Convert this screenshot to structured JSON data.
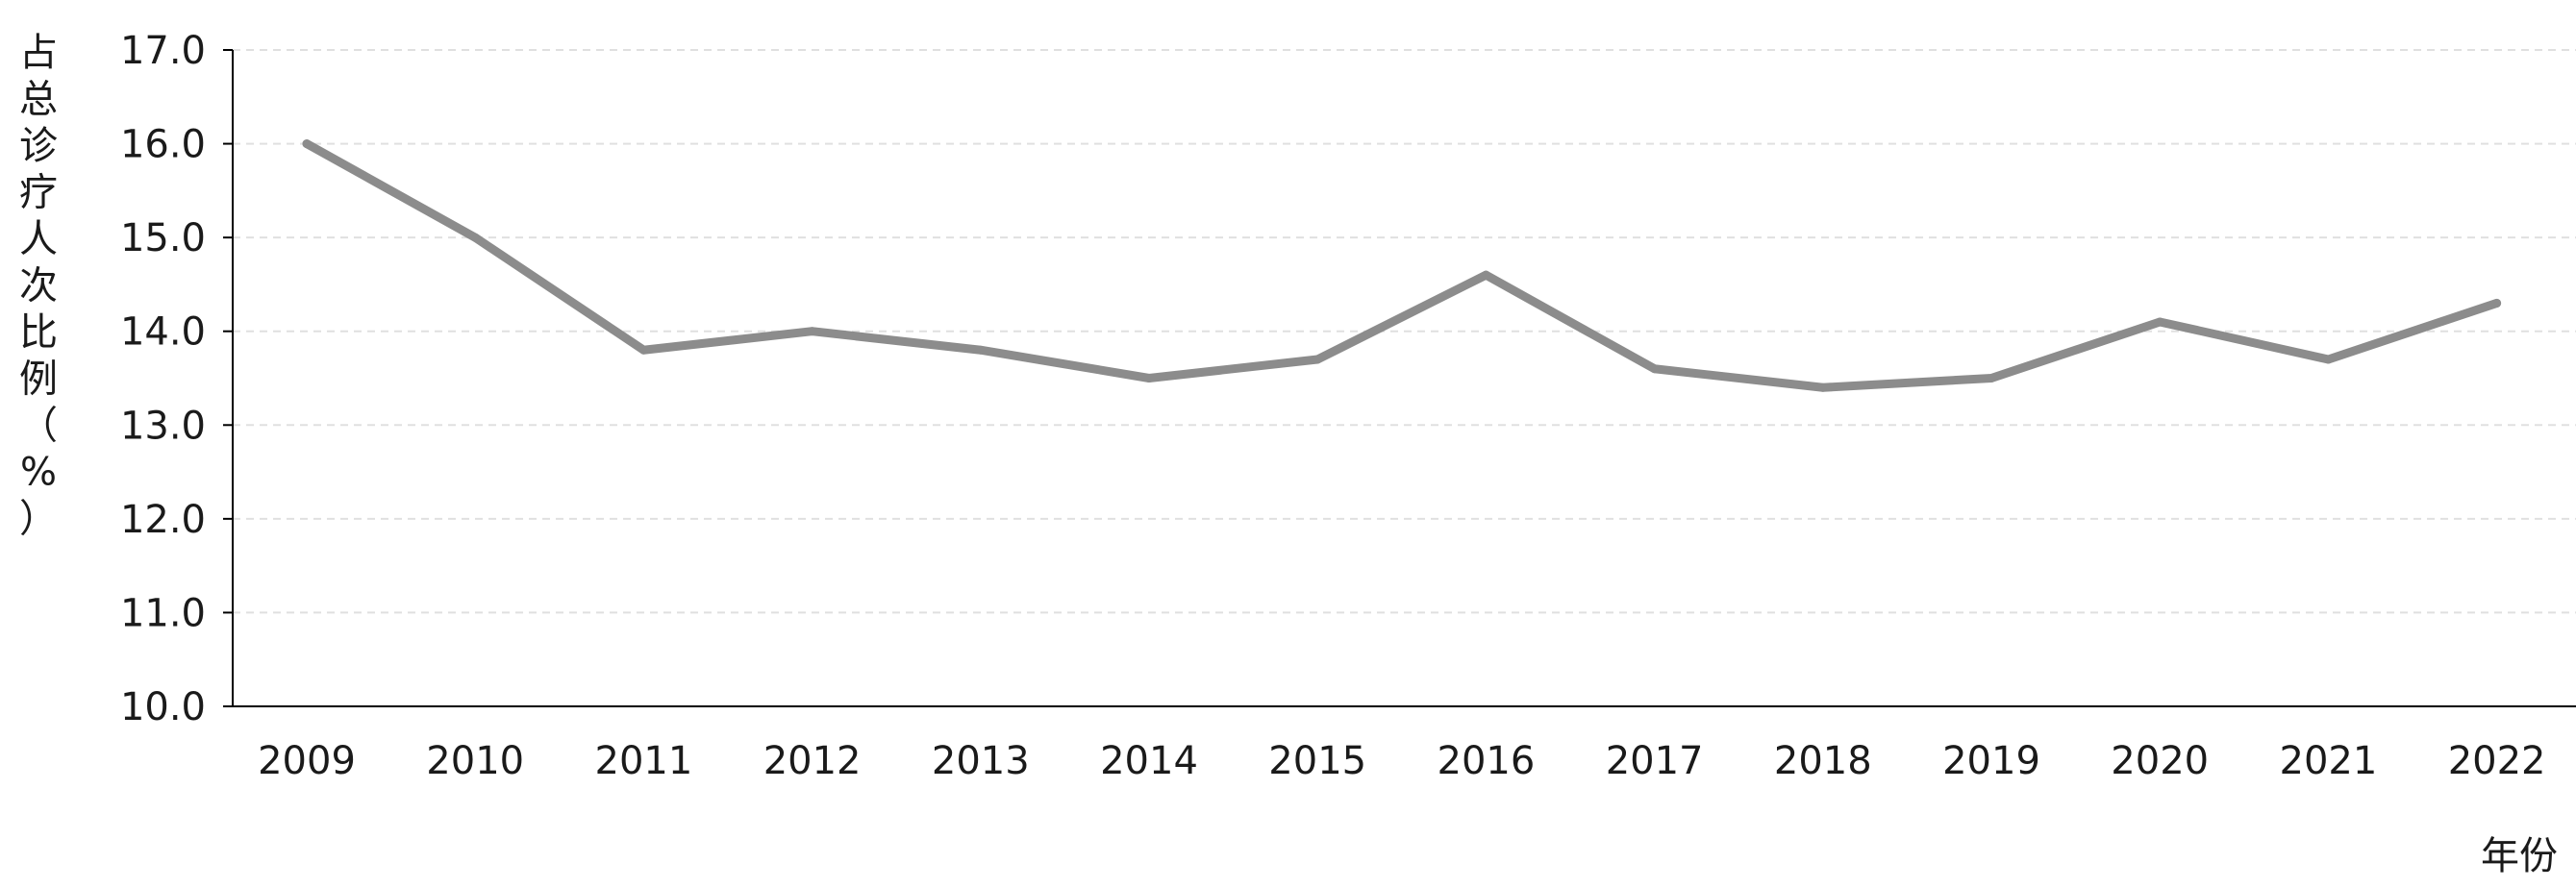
{
  "chart_data": {
    "type": "line",
    "title": "",
    "xlabel": "年份",
    "ylabel": "占总诊疗人次比例（%）",
    "ylabel_chars": [
      "占",
      "总",
      "诊",
      "疗",
      "人",
      "次",
      "比",
      "例",
      "（",
      "%",
      "）"
    ],
    "categories": [
      "2009",
      "2010",
      "2011",
      "2012",
      "2013",
      "2014",
      "2015",
      "2016",
      "2017",
      "2018",
      "2019",
      "2020",
      "2021",
      "2022"
    ],
    "series": [
      {
        "values": [
          16.0,
          15.0,
          13.8,
          14.0,
          13.8,
          13.5,
          13.7,
          14.6,
          13.6,
          13.4,
          13.5,
          14.1,
          13.7,
          14.3
        ],
        "color": "#8c8c8c"
      }
    ],
    "ylim": [
      10.0,
      17.0
    ],
    "yticks": [
      "10.0",
      "11.0",
      "12.0",
      "13.0",
      "14.0",
      "15.0",
      "16.0",
      "17.0"
    ],
    "grid": true,
    "grid_style": "dashed horizontal",
    "legend": "none",
    "colors": {
      "line": "#8c8c8c",
      "axis": "#000000",
      "grid": "#e0e0e0",
      "text": "#1a1a1a"
    }
  }
}
